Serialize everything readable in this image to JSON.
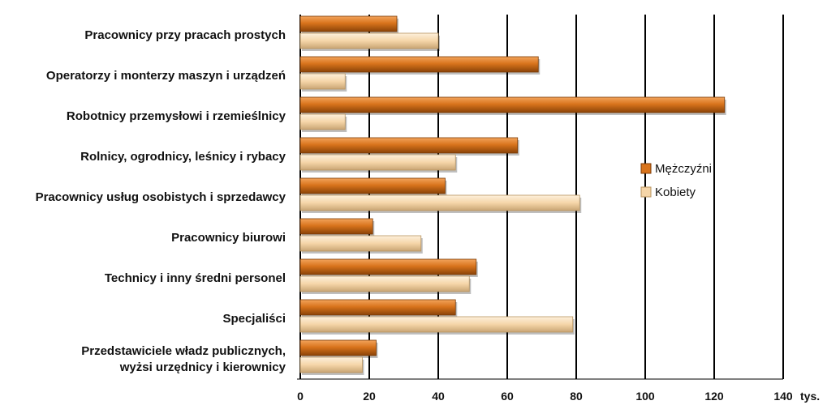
{
  "chart_data": {
    "type": "bar",
    "orientation": "horizontal",
    "categories": [
      [
        "Pracownicy przy pracach prostych"
      ],
      [
        "Operatorzy i monterzy maszyn i urządzeń"
      ],
      [
        "Robotnicy przemysłowi i rzemieślnicy"
      ],
      [
        "Rolnicy, ogrodnicy, leśnicy i rybacy"
      ],
      [
        "Pracownicy usług osobistych i sprzedawcy"
      ],
      [
        "Pracownicy biurowi"
      ],
      [
        "Technicy i inny średni personel"
      ],
      [
        "Specjaliści"
      ],
      [
        "Przedstawiciele władz publicznych,",
        "wyżsi urzędnicy i kierownicy"
      ]
    ],
    "series": [
      {
        "name": "Mężczyźni",
        "color": "#d9741c",
        "values": [
          28,
          69,
          123,
          63,
          42,
          21,
          51,
          45,
          22
        ]
      },
      {
        "name": "Kobiety",
        "color": "#f5d5a8",
        "values": [
          40,
          13,
          13,
          45,
          81,
          35,
          49,
          79,
          18
        ]
      }
    ],
    "x_ticks": [
      "0",
      "20",
      "40",
      "60",
      "80",
      "100",
      "120",
      "140"
    ],
    "x_unit": "tys.",
    "xlim": [
      0,
      140
    ],
    "grid": true,
    "legend_position": "right"
  }
}
